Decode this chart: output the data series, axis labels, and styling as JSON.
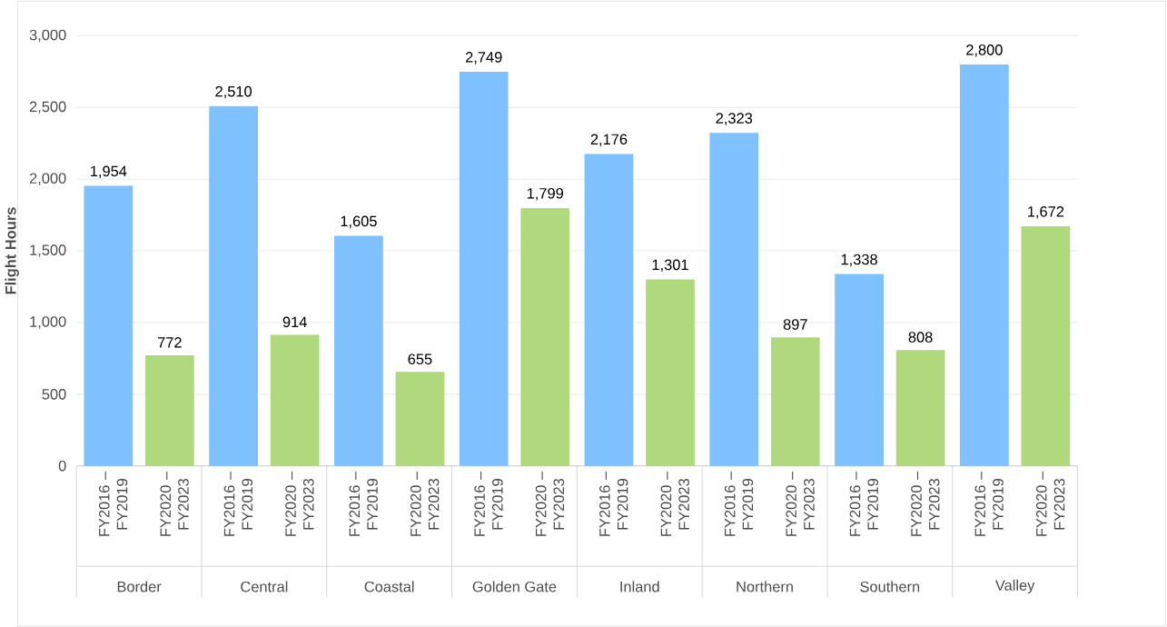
{
  "chart_data": {
    "type": "bar",
    "ylabel": "Flight Hours",
    "categories": [
      "Border",
      "Central",
      "Coastal",
      "Golden Gate",
      "Inland",
      "Northern",
      "Southern",
      "Valley"
    ],
    "series": [
      {
        "name": "FY2016 – FY2019",
        "color": "#7fc1ff",
        "values": [
          1954,
          2510,
          1605,
          2749,
          2176,
          2323,
          1338,
          2800
        ],
        "value_labels": [
          "1,954",
          "2,510",
          "1,605",
          "2,749",
          "2,176",
          "2,323",
          "1,338",
          "2,800"
        ]
      },
      {
        "name": "FY2020 – FY2023",
        "color": "#b0d87c",
        "values": [
          772,
          914,
          655,
          1799,
          1301,
          897,
          808,
          1672
        ],
        "value_labels": [
          "772",
          "914",
          "655",
          "1,799",
          "1,301",
          "897",
          "808",
          "1,672"
        ]
      }
    ],
    "ylim": [
      0,
      3000
    ],
    "yticks": [
      {
        "value": 0,
        "label": "0"
      },
      {
        "value": 500,
        "label": "500"
      },
      {
        "value": 1000,
        "label": "1,000"
      },
      {
        "value": 1500,
        "label": "1,500"
      },
      {
        "value": 2000,
        "label": "2,000"
      },
      {
        "value": 2500,
        "label": "2,500"
      },
      {
        "value": 3000,
        "label": "3,000"
      }
    ],
    "grid": "y",
    "legend": false
  }
}
